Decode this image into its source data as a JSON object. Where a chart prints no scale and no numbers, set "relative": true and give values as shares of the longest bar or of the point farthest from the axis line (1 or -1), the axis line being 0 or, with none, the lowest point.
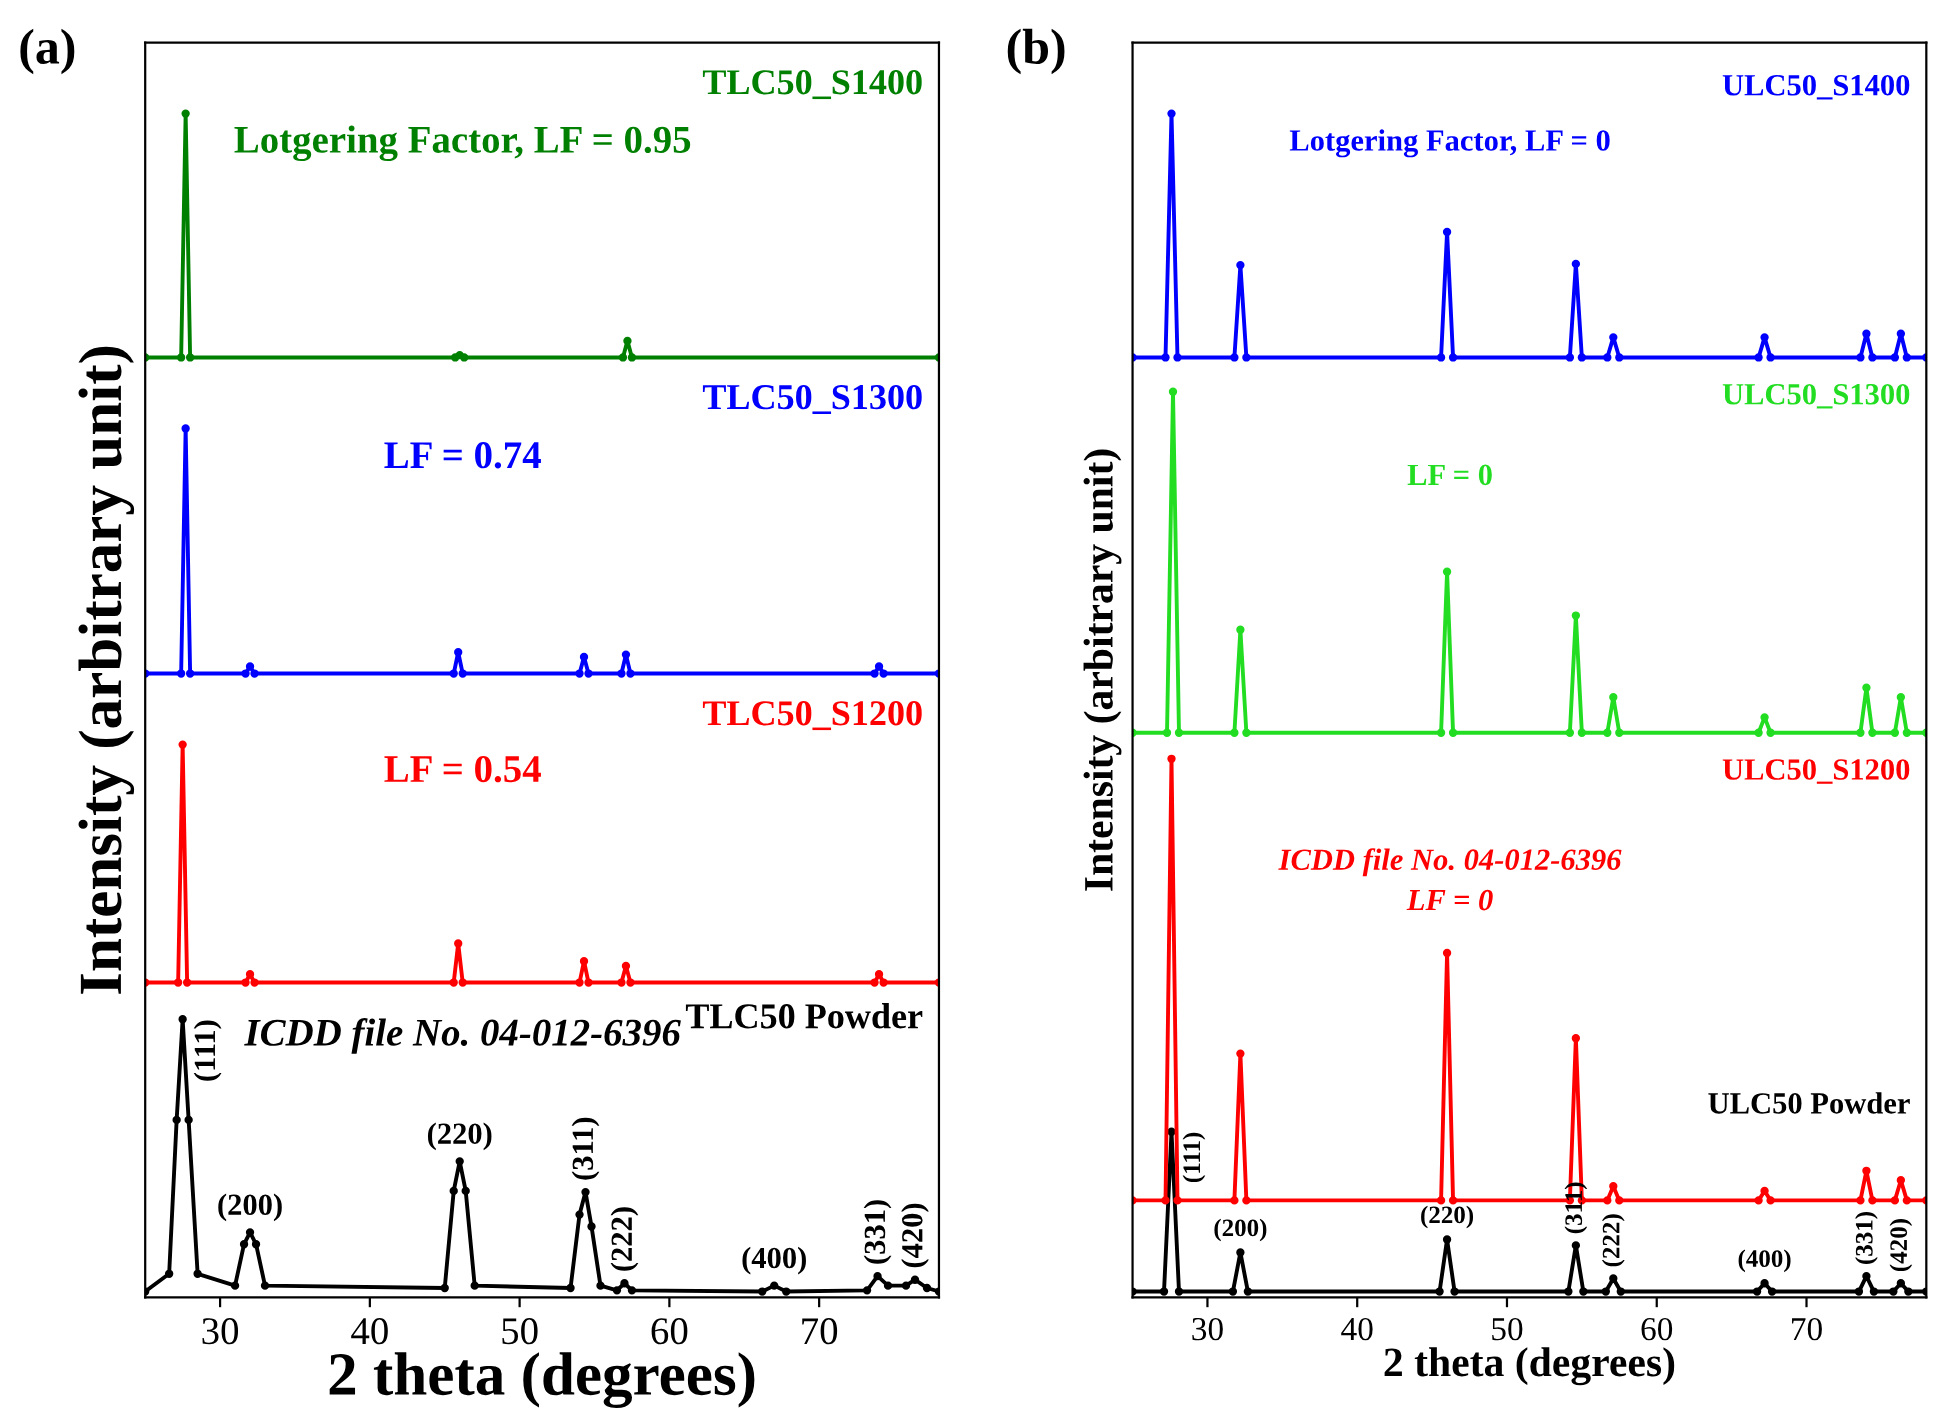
{
  "chart_data": [
    {
      "type": "line",
      "title": "(a)",
      "xlabel": "2 theta (degrees)",
      "ylabel": "Intensity (arbitrary unit)",
      "relative": true,
      "xlim": [
        25,
        78
      ],
      "xticks": [
        30,
        40,
        50,
        60,
        70
      ],
      "tick_labels": "x",
      "marker": "circle",
      "line_style": "solid",
      "grid": false,
      "legend": false,
      "series": [
        {
          "name": "TLC50 Powder",
          "color": "#000000",
          "x": [
            25,
            26.6,
            27.1,
            27.5,
            27.9,
            28.5,
            31.0,
            31.6,
            32.0,
            32.4,
            33.0,
            45.0,
            45.6,
            46.0,
            46.4,
            47.0,
            53.4,
            54.0,
            54.4,
            54.8,
            55.4,
            56.5,
            57.0,
            57.5,
            66.2,
            67.0,
            67.8,
            73.2,
            73.9,
            74.6,
            75.8,
            76.4,
            77.2,
            78
          ],
          "values": [
            0.005,
            0.02,
            0.15,
            0.235,
            0.15,
            0.02,
            0.01,
            0.045,
            0.055,
            0.045,
            0.01,
            0.008,
            0.09,
            0.115,
            0.09,
            0.01,
            0.008,
            0.07,
            0.089,
            0.06,
            0.01,
            0.006,
            0.012,
            0.006,
            0.005,
            0.01,
            0.005,
            0.006,
            0.018,
            0.01,
            0.01,
            0.015,
            0.008,
            0.005
          ]
        },
        {
          "name": "TLC50_S1200",
          "color": "#ff0000",
          "x": [
            25,
            27.2,
            27.5,
            27.8,
            31.7,
            32.0,
            32.3,
            45.6,
            45.9,
            46.2,
            54.0,
            54.3,
            54.6,
            56.8,
            57.1,
            57.4,
            73.7,
            74.0,
            74.3,
            78
          ],
          "values": [
            0.266,
            0.266,
            0.467,
            0.266,
            0.266,
            0.273,
            0.266,
            0.266,
            0.299,
            0.266,
            0.266,
            0.284,
            0.266,
            0.266,
            0.28,
            0.266,
            0.266,
            0.273,
            0.266,
            0.266
          ]
        },
        {
          "name": "TLC50_S1300",
          "color": "#0000ff",
          "x": [
            25,
            27.4,
            27.7,
            28.0,
            31.7,
            32.0,
            32.3,
            45.6,
            45.9,
            46.2,
            54.0,
            54.3,
            54.6,
            56.8,
            57.1,
            57.4,
            73.7,
            74.0,
            74.3,
            78
          ],
          "values": [
            0.527,
            0.527,
            0.734,
            0.527,
            0.527,
            0.533,
            0.527,
            0.527,
            0.545,
            0.527,
            0.527,
            0.541,
            0.527,
            0.527,
            0.543,
            0.527,
            0.527,
            0.533,
            0.527,
            0.527
          ]
        },
        {
          "name": "TLC50_S1400",
          "color": "#008000",
          "x": [
            25,
            27.4,
            27.7,
            28.0,
            45.7,
            46.0,
            46.3,
            56.9,
            57.2,
            57.5,
            78
          ],
          "values": [
            0.794,
            0.794,
            1.0,
            0.794,
            0.794,
            0.796,
            0.794,
            0.794,
            0.808,
            0.794,
            0.794
          ]
        }
      ],
      "annotations": [
        "Lotgering Factor, LF = 0.95",
        "LF = 0.74",
        "LF = 0.54",
        "ICDD file No. 04-012-6396",
        {
          "text": "(111)",
          "x": 27.5,
          "y": 0.235
        },
        {
          "text": "(200)",
          "x": 32.0,
          "y": 0.055
        },
        {
          "text": "(220)",
          "x": 46.0,
          "y": 0.115
        },
        {
          "text": "(311)",
          "x": 54.4,
          "y": 0.089
        },
        {
          "text": "(222)",
          "x": 57.0,
          "y": 0.012
        },
        {
          "text": "(400)",
          "x": 67.0,
          "y": 0.01
        },
        {
          "text": "(331)",
          "x": 73.9,
          "y": 0.018
        },
        {
          "text": "(420)",
          "x": 76.4,
          "y": 0.015
        }
      ]
    },
    {
      "type": "line",
      "title": "(b)",
      "xlabel": "2 theta (degrees)",
      "ylabel": "Intensity (arbitrary unit)",
      "relative": true,
      "xlim": [
        25,
        78
      ],
      "xticks": [
        30,
        40,
        50,
        60,
        70
      ],
      "tick_labels": "x",
      "marker": "circle",
      "line_style": "solid",
      "grid": false,
      "legend": false,
      "series": [
        {
          "name": "ULC50 Powder",
          "color": "#000000",
          "x": [
            25,
            27.1,
            27.6,
            28.1,
            31.7,
            32.2,
            32.7,
            45.5,
            46.0,
            46.5,
            54.1,
            54.6,
            55.1,
            56.6,
            57.1,
            57.6,
            66.7,
            67.2,
            67.7,
            73.5,
            74.0,
            74.5,
            75.8,
            76.3,
            76.8,
            78
          ],
          "values": [
            0.005,
            0.005,
            0.14,
            0.005,
            0.005,
            0.038,
            0.005,
            0.005,
            0.049,
            0.005,
            0.005,
            0.044,
            0.005,
            0.005,
            0.016,
            0.005,
            0.005,
            0.012,
            0.005,
            0.005,
            0.018,
            0.005,
            0.005,
            0.012,
            0.005,
            0.005
          ]
        },
        {
          "name": "ULC50_S1200",
          "color": "#ff0000",
          "x": [
            25,
            27.2,
            27.6,
            28.0,
            31.8,
            32.2,
            32.6,
            45.6,
            46.0,
            46.4,
            54.2,
            54.6,
            55.0,
            56.7,
            57.1,
            57.5,
            66.8,
            67.2,
            67.6,
            73.6,
            74.0,
            74.4,
            75.9,
            76.3,
            76.7,
            78
          ],
          "values": [
            0.082,
            0.082,
            0.455,
            0.082,
            0.082,
            0.206,
            0.082,
            0.082,
            0.291,
            0.082,
            0.082,
            0.219,
            0.082,
            0.082,
            0.094,
            0.082,
            0.082,
            0.09,
            0.082,
            0.082,
            0.107,
            0.082,
            0.082,
            0.099,
            0.082,
            0.082
          ]
        },
        {
          "name": "ULC50_S1300",
          "color": "#22dd22",
          "x": [
            25,
            27.3,
            27.7,
            28.1,
            31.8,
            32.2,
            32.6,
            45.6,
            46.0,
            46.4,
            54.2,
            54.6,
            55.0,
            56.7,
            57.1,
            57.5,
            66.8,
            67.2,
            67.6,
            73.6,
            74.0,
            74.4,
            75.9,
            76.3,
            76.7,
            78
          ],
          "values": [
            0.477,
            0.477,
            0.765,
            0.477,
            0.477,
            0.564,
            0.477,
            0.477,
            0.613,
            0.477,
            0.477,
            0.576,
            0.477,
            0.477,
            0.507,
            0.477,
            0.477,
            0.49,
            0.477,
            0.477,
            0.515,
            0.477,
            0.477,
            0.507,
            0.477,
            0.477
          ]
        },
        {
          "name": "ULC50_S1400",
          "color": "#0000ff",
          "x": [
            25,
            27.2,
            27.6,
            28.0,
            31.8,
            32.2,
            32.6,
            45.6,
            46.0,
            46.4,
            54.2,
            54.6,
            55.0,
            56.7,
            57.1,
            57.5,
            66.8,
            67.2,
            67.6,
            73.6,
            74.0,
            74.4,
            75.9,
            76.3,
            76.7,
            78
          ],
          "values": [
            0.794,
            0.794,
            1.0,
            0.794,
            0.794,
            0.872,
            0.794,
            0.794,
            0.9,
            0.794,
            0.794,
            0.873,
            0.794,
            0.794,
            0.811,
            0.794,
            0.794,
            0.811,
            0.794,
            0.794,
            0.814,
            0.794,
            0.794,
            0.814,
            0.794,
            0.794
          ]
        }
      ],
      "annotations": [
        "Lotgering Factor, LF = 0",
        "LF = 0",
        "ICDD file No. 04-012-6396\nLF = 0",
        {
          "text": "(111)",
          "x": 27.6,
          "y": 0.14
        },
        {
          "text": "(200)",
          "x": 32.2,
          "y": 0.038
        },
        {
          "text": "(220)",
          "x": 46.0,
          "y": 0.049
        },
        {
          "text": "(311)",
          "x": 54.6,
          "y": 0.044
        },
        {
          "text": "(222)",
          "x": 57.1,
          "y": 0.016
        },
        {
          "text": "(400)",
          "x": 67.2,
          "y": 0.012
        },
        {
          "text": "(331)",
          "x": 74.0,
          "y": 0.018
        },
        {
          "text": "(420)",
          "x": 76.3,
          "y": 0.012
        }
      ]
    }
  ]
}
